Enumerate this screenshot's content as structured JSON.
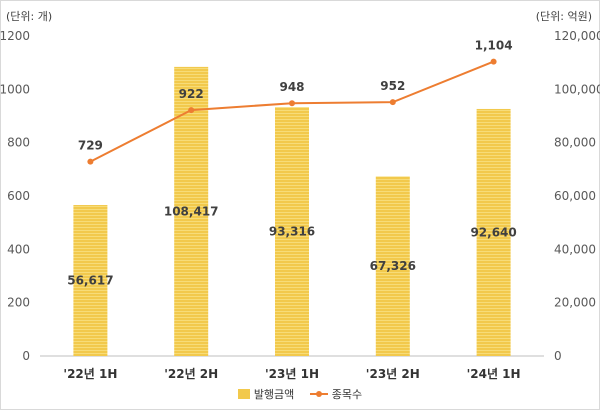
{
  "chart_data": {
    "type": "bar",
    "categories": [
      "'22년 1H",
      "'22년 2H",
      "'23년 1H",
      "'23년 2H",
      "'24년 1H"
    ],
    "series": [
      {
        "name": "발행금액",
        "type": "bar",
        "axis": "right",
        "values": [
          56617,
          108417,
          93316,
          67326,
          92640
        ],
        "labels": [
          "56,617",
          "108,417",
          "93,316",
          "67,326",
          "92,640"
        ],
        "color": "#f2c94c"
      },
      {
        "name": "종목수",
        "type": "line",
        "axis": "left",
        "values": [
          729,
          922,
          948,
          952,
          1104
        ],
        "labels": [
          "729",
          "922",
          "948",
          "952",
          "1,104"
        ],
        "color": "#ed7d31"
      }
    ],
    "left_axis": {
      "unit": "(단위: 개)",
      "range": [
        0,
        1200
      ],
      "ticks": [
        "0",
        "200",
        "400",
        "600",
        "800",
        "1000",
        "1200"
      ]
    },
    "right_axis": {
      "unit": "(단위: 억원)",
      "range": [
        0,
        120000
      ],
      "ticks": [
        "0",
        "20,000",
        "40,000",
        "60,000",
        "80,000",
        "100,000",
        "120,000"
      ]
    },
    "legend": "bottom",
    "grid": false
  }
}
